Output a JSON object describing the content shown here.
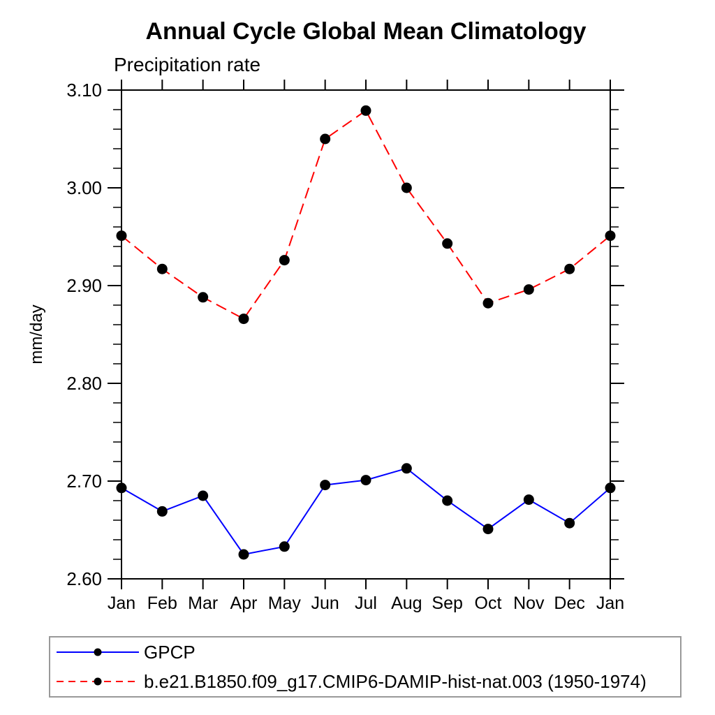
{
  "chart_data": {
    "type": "line",
    "title": "Annual Cycle Global Mean Climatology",
    "subtitle": "Precipitation rate",
    "ylabel": "mm/day",
    "xlabel": "",
    "categories": [
      "Jan",
      "Feb",
      "Mar",
      "Apr",
      "May",
      "Jun",
      "Jul",
      "Aug",
      "Sep",
      "Oct",
      "Nov",
      "Dec",
      "Jan"
    ],
    "ylim": [
      2.6,
      3.1
    ],
    "ytick_labels": [
      "2.60",
      "2.70",
      "2.80",
      "2.90",
      "3.00",
      "3.10"
    ],
    "ytick_step": 0.1,
    "yminor_step": 0.02,
    "grid": false,
    "legend_position": "bottom-left-box",
    "axis_color": "#000000",
    "marker_color": "#000000",
    "legend_border_color": "#999999",
    "series": [
      {
        "key": "gpcp",
        "name": "GPCP",
        "color": "#0000ff",
        "line_style": "solid",
        "marker": "circle",
        "values": [
          2.693,
          2.669,
          2.685,
          2.625,
          2.633,
          2.696,
          2.701,
          2.713,
          2.68,
          2.651,
          2.681,
          2.657,
          2.693
        ]
      },
      {
        "key": "hist-nat",
        "name": "b.e21.B1850.f09_g17.CMIP6-DAMIP-hist-nat.003 (1950-1974)",
        "color": "#ff0000",
        "line_style": "dashed",
        "marker": "circle",
        "values": [
          2.951,
          2.917,
          2.888,
          2.866,
          2.926,
          3.05,
          3.079,
          3.0,
          2.943,
          2.882,
          2.896,
          2.917,
          2.951
        ]
      }
    ]
  }
}
